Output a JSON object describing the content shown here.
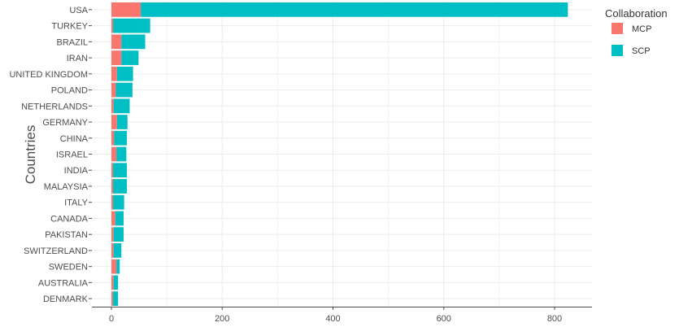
{
  "chart_data": {
    "type": "bar",
    "orientation": "horizontal",
    "stacked": true,
    "title": "",
    "xlabel": "",
    "ylabel": "Countries",
    "categories": [
      "USA",
      "TURKEY",
      "BRAZIL",
      "IRAN",
      "UNITED KINGDOM",
      "POLAND",
      "NETHERLANDS",
      "GERMANY",
      "CHINA",
      "ISRAEL",
      "INDIA",
      "MALAYSIA",
      "ITALY",
      "CANADA",
      "PAKISTAN",
      "SWITZERLAND",
      "SWEDEN",
      "AUSTRALIA",
      "DENMARK"
    ],
    "series": [
      {
        "name": "MCP",
        "color": "#F8766D",
        "values": [
          53,
          3,
          18,
          18,
          10,
          8,
          4,
          10,
          5,
          9,
          3,
          3,
          3,
          7,
          4,
          4,
          9,
          4,
          3
        ]
      },
      {
        "name": "SCP",
        "color": "#00BFC4",
        "values": [
          771,
          67,
          43,
          31,
          29,
          30,
          29,
          19,
          23,
          18,
          25,
          25,
          20,
          15,
          18,
          14,
          6,
          8,
          9
        ]
      }
    ],
    "xlim": [
      0,
      850
    ],
    "xticks": [
      0,
      200,
      400,
      600,
      800
    ],
    "grid": true,
    "legend": {
      "title": "Collaboration",
      "position": "right"
    }
  }
}
